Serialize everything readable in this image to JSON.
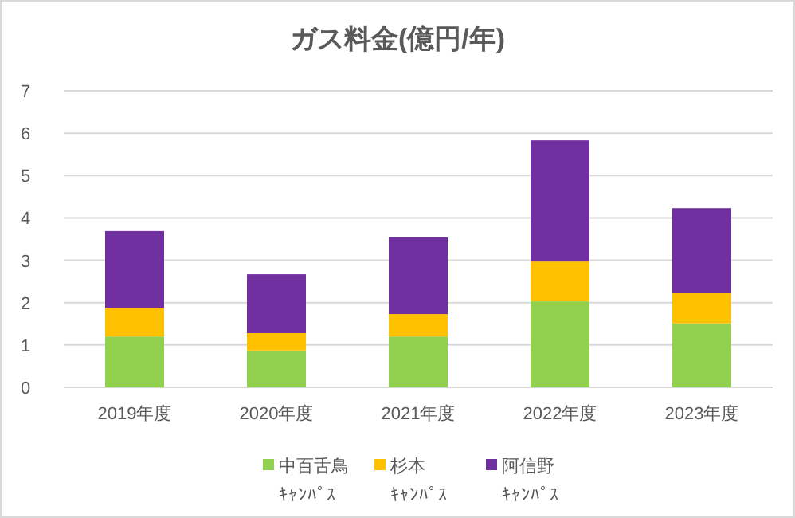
{
  "chart_data": {
    "type": "bar",
    "stacked": true,
    "title": "ガス料金(億円/年)",
    "categories": [
      "2019年度",
      "2020年度",
      "2021年度",
      "2022年度",
      "2023年度"
    ],
    "series": [
      {
        "name": "中百舌鳥ｷｬﾝﾊﾟｽ",
        "color": "#92d050",
        "values": [
          1.2,
          0.87,
          1.2,
          2.03,
          1.51
        ]
      },
      {
        "name": "杉本ｷｬﾝﾊﾟｽ",
        "color": "#ffc000",
        "values": [
          0.68,
          0.41,
          0.53,
          0.94,
          0.71
        ]
      },
      {
        "name": "阿信野ｷｬﾝﾊﾟｽ",
        "color": "#7030a0",
        "values": [
          1.81,
          1.39,
          1.81,
          2.86,
          2.01
        ]
      }
    ],
    "ylim": [
      0,
      7
    ],
    "yticks": [
      0,
      1,
      2,
      3,
      4,
      5,
      6,
      7
    ],
    "grid": "y",
    "legend": "bottom"
  }
}
